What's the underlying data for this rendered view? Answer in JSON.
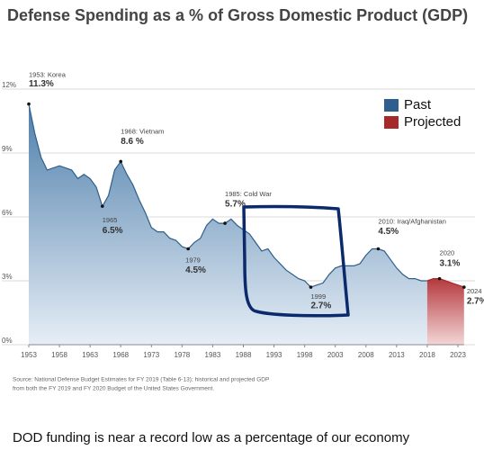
{
  "chart_data": {
    "type": "area",
    "title": "Defense Spending as a % of Gross Domestic Product (GDP)",
    "x": [
      1953,
      1954,
      1955,
      1956,
      1957,
      1958,
      1959,
      1960,
      1961,
      1962,
      1963,
      1964,
      1965,
      1966,
      1967,
      1968,
      1969,
      1970,
      1971,
      1972,
      1973,
      1974,
      1975,
      1976,
      1977,
      1978,
      1979,
      1980,
      1981,
      1982,
      1983,
      1984,
      1985,
      1986,
      1987,
      1988,
      1989,
      1990,
      1991,
      1992,
      1993,
      1994,
      1995,
      1996,
      1997,
      1998,
      1999,
      2000,
      2001,
      2002,
      2003,
      2004,
      2005,
      2006,
      2007,
      2008,
      2009,
      2010,
      2011,
      2012,
      2013,
      2014,
      2015,
      2016,
      2017,
      2018,
      2019,
      2020,
      2021,
      2022,
      2023,
      2024
    ],
    "series": [
      {
        "name": "Past",
        "color": "#2f5f8a",
        "values": [
          11.3,
          9.9,
          8.8,
          8.2,
          8.3,
          8.4,
          8.3,
          8.2,
          7.8,
          8.0,
          7.8,
          7.4,
          6.5,
          7.0,
          8.2,
          8.6,
          8.0,
          7.5,
          6.8,
          6.2,
          5.5,
          5.3,
          5.3,
          5.0,
          4.9,
          4.6,
          4.5,
          4.8,
          5.0,
          5.6,
          5.9,
          5.7,
          5.7,
          5.9,
          5.6,
          5.4,
          5.2,
          4.8,
          4.4,
          4.5,
          4.1,
          3.8,
          3.5,
          3.3,
          3.1,
          3.0,
          2.7,
          2.8,
          2.9,
          3.3,
          3.6,
          3.7,
          3.7,
          3.7,
          3.8,
          4.2,
          4.5,
          4.5,
          4.4,
          4.0,
          3.6,
          3.3,
          3.1,
          3.1,
          3.0,
          3.0,
          null,
          null,
          null,
          null,
          null,
          null
        ]
      },
      {
        "name": "Projected",
        "color": "#a52a2a",
        "values": [
          null,
          null,
          null,
          null,
          null,
          null,
          null,
          null,
          null,
          null,
          null,
          null,
          null,
          null,
          null,
          null,
          null,
          null,
          null,
          null,
          null,
          null,
          null,
          null,
          null,
          null,
          null,
          null,
          null,
          null,
          null,
          null,
          null,
          null,
          null,
          null,
          null,
          null,
          null,
          null,
          null,
          null,
          null,
          null,
          null,
          null,
          null,
          null,
          null,
          null,
          null,
          null,
          null,
          null,
          null,
          null,
          null,
          null,
          null,
          null,
          null,
          null,
          null,
          null,
          null,
          3.0,
          3.1,
          3.1,
          3.0,
          2.9,
          2.8,
          2.7
        ]
      }
    ],
    "xlim": [
      1953,
      2024
    ],
    "xticks": [
      1953,
      1958,
      1963,
      1968,
      1973,
      1978,
      1983,
      1988,
      1993,
      1998,
      2003,
      2008,
      2013,
      2018,
      2023
    ],
    "ylim": [
      0,
      12
    ],
    "yticks": [
      {
        "value": 0,
        "label": "0%"
      },
      {
        "value": 3,
        "label": "3%"
      },
      {
        "value": 6,
        "label": "6%"
      },
      {
        "value": 9,
        "label": "9%"
      },
      {
        "value": 12,
        "label": "12%"
      }
    ],
    "grid": true,
    "legend": "upper right",
    "annotations": [
      {
        "label": "1953: Korea",
        "x": 1953,
        "value": 11.3,
        "value_label": "11.3%"
      },
      {
        "label": "1968: Vietnam",
        "x": 1968,
        "value": 8.6,
        "value_label": "8.6 %"
      },
      {
        "label": "1965",
        "x": 1965,
        "value": 6.5,
        "value_label": "6.5%"
      },
      {
        "label": "1979",
        "x": 1979,
        "value": 4.5,
        "value_label": "4.5%"
      },
      {
        "label": "1985: Cold War",
        "x": 1985,
        "value": 5.7,
        "value_label": "5.7%"
      },
      {
        "label": "1999",
        "x": 1999,
        "value": 2.7,
        "value_label": "2.7%"
      },
      {
        "label": "2010: Iraq/Afghanistan",
        "x": 2010,
        "value": 4.5,
        "value_label": "4.5%"
      },
      {
        "label": "2020",
        "x": 2020,
        "value": 3.1,
        "value_label": "3.1%"
      },
      {
        "label": "2024",
        "x": 2024,
        "value": 2.7,
        "value_label": "2.7%"
      }
    ],
    "source": [
      "Source: National Defense Budget Estimates for FY 2019 (Table 6-13); historical and projected GDP",
      "from both the FY 2019 and FY 2020 Budget of the United States Government."
    ],
    "caption": "DOD funding is near a record low as a percentage of our economy"
  }
}
